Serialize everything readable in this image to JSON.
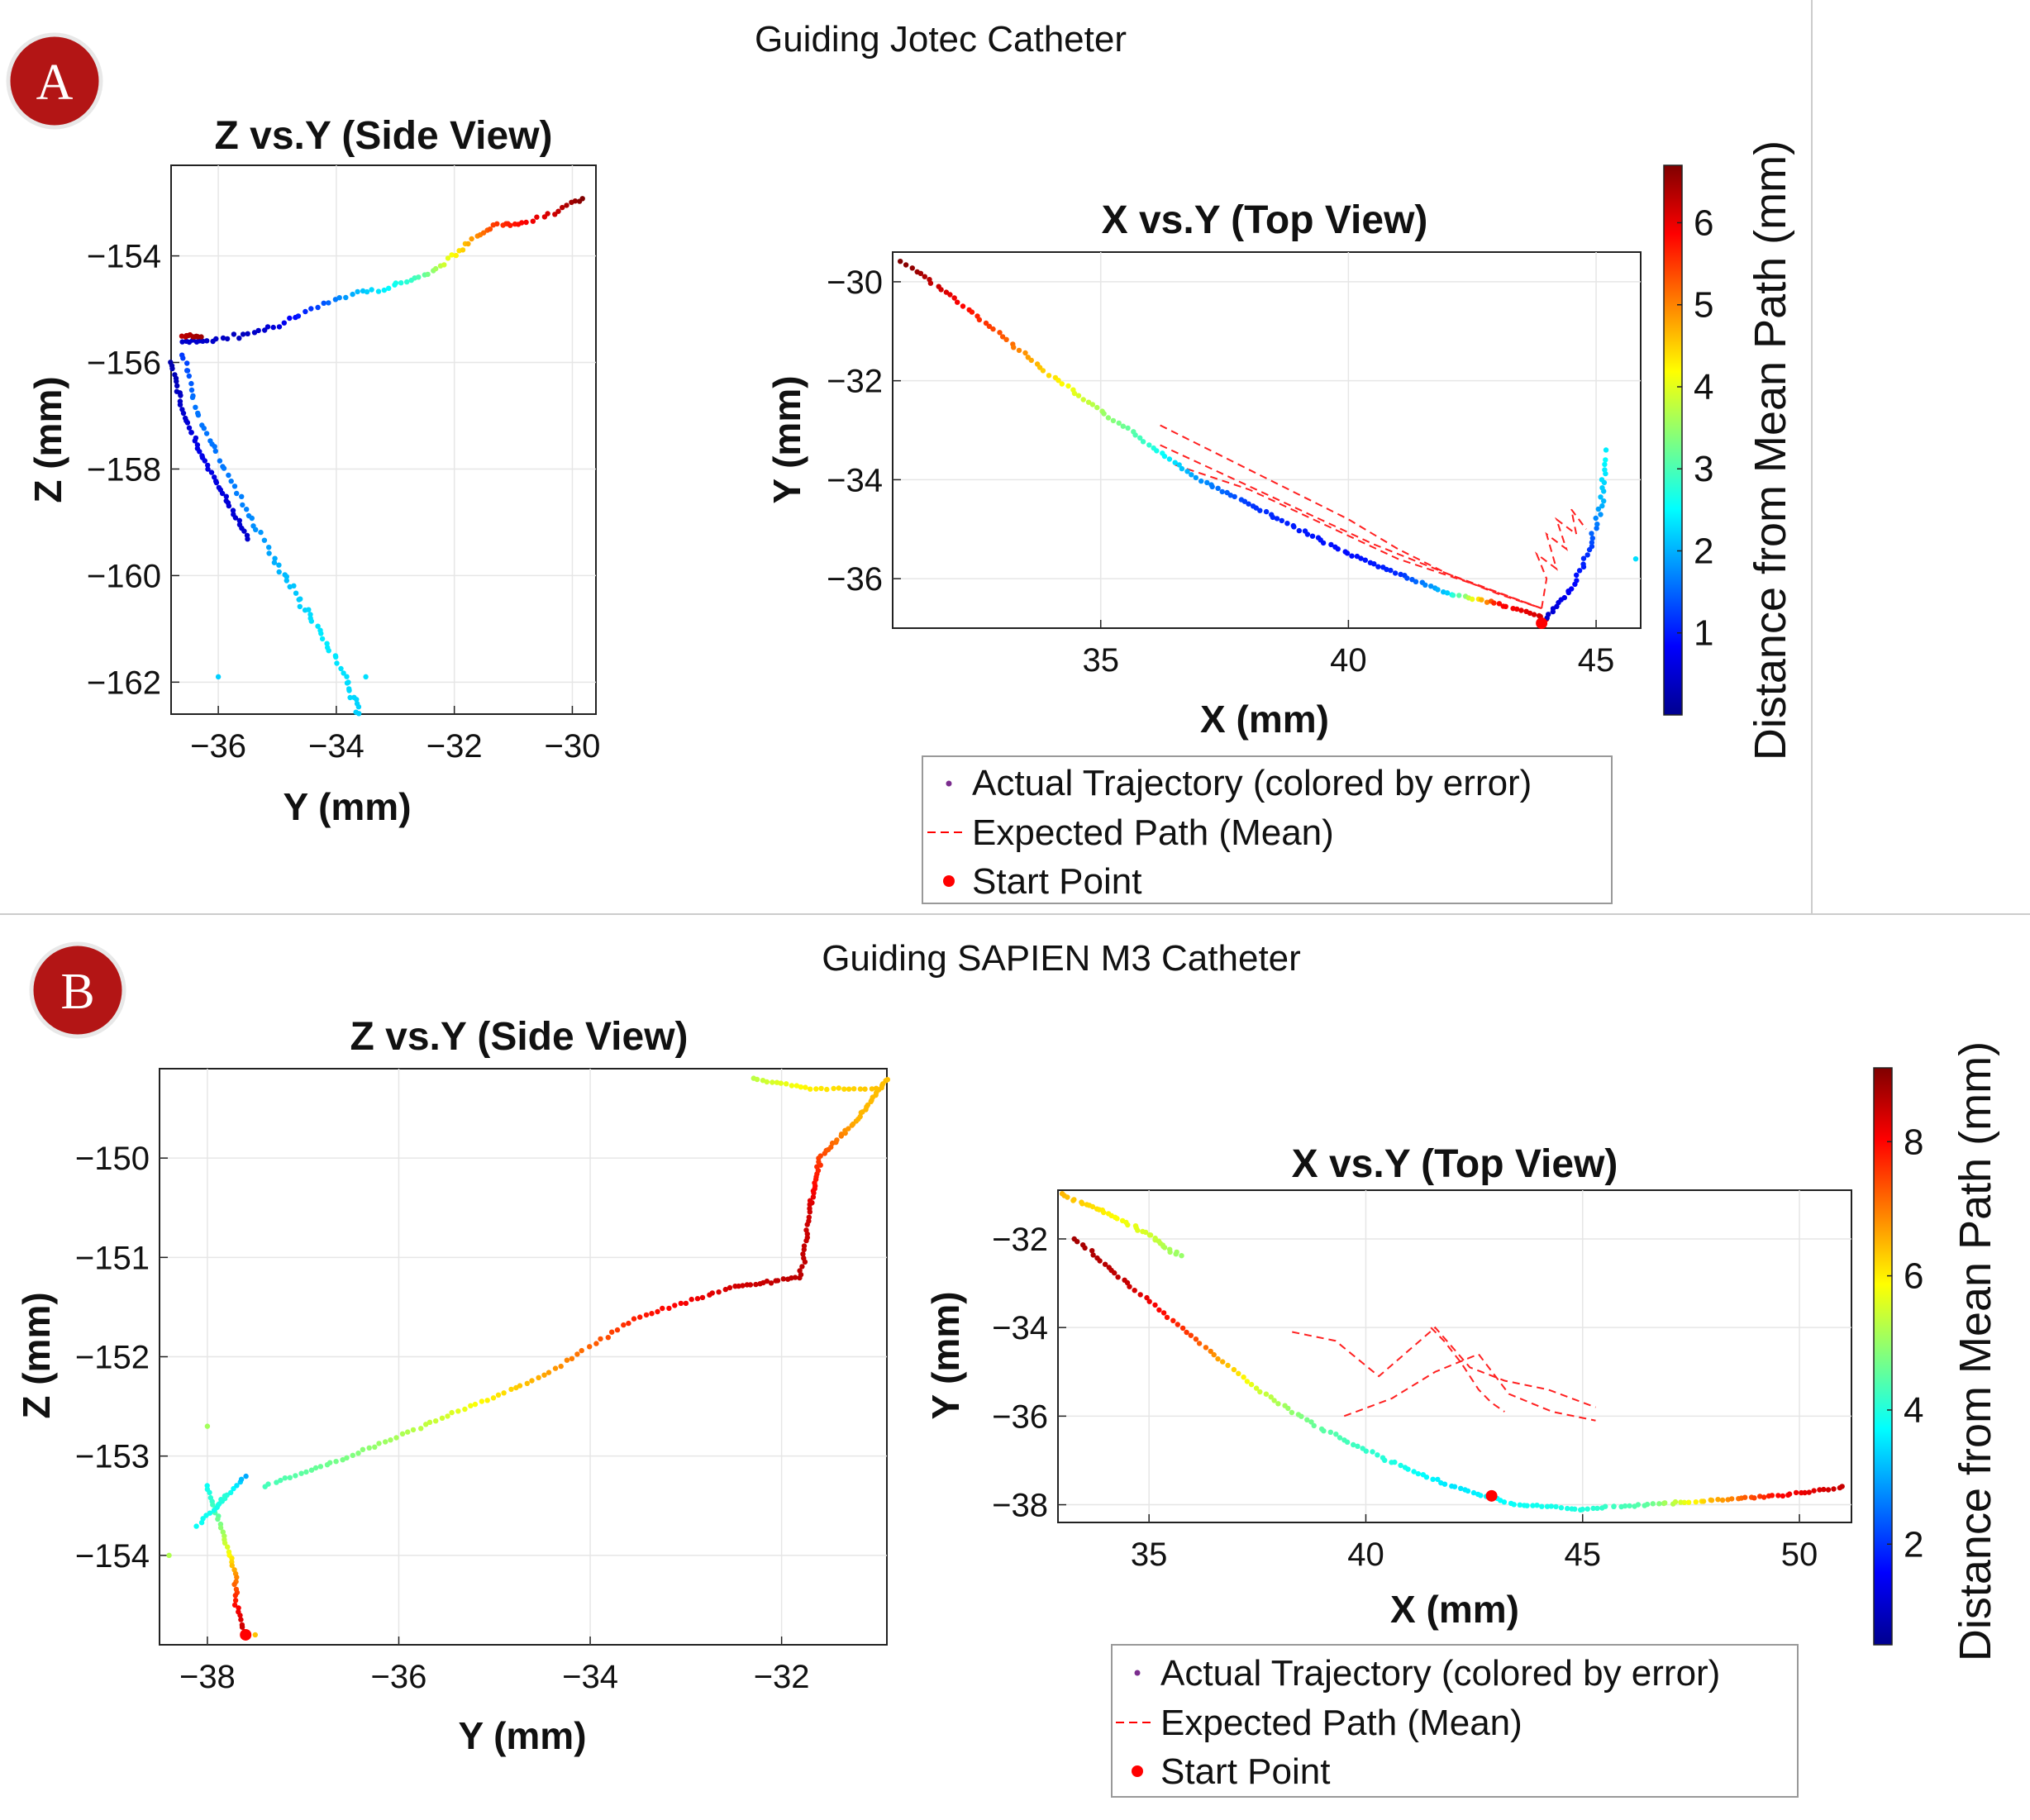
{
  "panels": [
    {
      "badge": "A",
      "figure_title": "Guiding Jotec Catheter",
      "colorbar": {
        "label": "Distance from Mean Path (mm)",
        "ticks": [
          "1",
          "2",
          "3",
          "4",
          "5",
          "6"
        ],
        "min": 0,
        "max": 6.7
      },
      "legend": {
        "actual": "Actual Trajectory (colored by error)",
        "expected": "Expected Path (Mean)",
        "start": "Start Point"
      }
    },
    {
      "badge": "B",
      "figure_title": "Guiding SAPIEN M3 Catheter",
      "colorbar": {
        "label": "Distance from Mean Path (mm)",
        "ticks": [
          "2",
          "4",
          "6",
          "8"
        ],
        "min": 0.5,
        "max": 9.1
      },
      "legend": {
        "actual": "Actual Trajectory (colored by error)",
        "expected": "Expected Path (Mean)",
        "start": "Start Point"
      }
    }
  ],
  "chart_data": [
    {
      "id": "A-side",
      "type": "scatter",
      "title": "Z vs.Y (Side View)",
      "xlabel": "Y (mm)",
      "ylabel": "Z (mm)",
      "xlim": [
        -36.8,
        -29.6
      ],
      "ylim": [
        -162.6,
        -152.3
      ],
      "xticks": [
        -36,
        -34,
        -32,
        -30
      ],
      "yticks": [
        -154,
        -156,
        -158,
        -160,
        -162
      ],
      "grid": true,
      "legend": "none",
      "tracks": [
        {
          "x": [
            -36.6,
            -36.2,
            -35.6,
            -35.0,
            -34.4,
            -33.7,
            -33.1,
            -32.6,
            -32.1,
            -31.7,
            -31.3,
            -30.9,
            -30.3,
            -29.8
          ],
          "y": [
            -155.6,
            -155.6,
            -155.5,
            -155.3,
            -155.0,
            -154.7,
            -154.6,
            -154.4,
            -154.1,
            -153.7,
            -153.4,
            -153.4,
            -153.2,
            -152.9
          ],
          "e": [
            0.5,
            0.5,
            0.4,
            0.6,
            1.2,
            2.0,
            2.5,
            3.0,
            4.0,
            4.8,
            5.5,
            5.8,
            6.2,
            6.7
          ],
          "n": 90,
          "spread": 0.06
        },
        {
          "x": [
            -36.6,
            -36.4,
            -36.0,
            -35.5,
            -35.0,
            -34.6,
            -34.2,
            -33.8,
            -33.6
          ],
          "y": [
            -155.8,
            -156.8,
            -157.8,
            -158.8,
            -159.8,
            -160.5,
            -161.2,
            -162.0,
            -162.6
          ],
          "e": [
            1.2,
            1.6,
            1.6,
            1.7,
            2.0,
            2.2,
            2.4,
            2.3,
            2.2
          ],
          "n": 80,
          "spread": 0.08
        },
        {
          "x": [
            -36.8,
            -36.6,
            -36.3,
            -35.9,
            -35.5
          ],
          "y": [
            -156.0,
            -156.9,
            -157.7,
            -158.5,
            -159.3
          ],
          "e": [
            0.3,
            0.5,
            0.7,
            0.6,
            0.5
          ],
          "n": 50,
          "spread": 0.05
        },
        {
          "x": [
            -36.6,
            -36.3
          ],
          "y": [
            -155.5,
            -155.5
          ],
          "e": [
            6.3,
            6.5
          ],
          "n": 10,
          "spread": 0.04
        }
      ],
      "outliers": [
        {
          "x": -36.0,
          "y": -161.9,
          "e": 2.2
        },
        {
          "x": -33.5,
          "y": -161.9,
          "e": 2.3
        }
      ]
    },
    {
      "id": "A-top",
      "type": "scatter",
      "title": "X vs.Y (Top View)",
      "xlabel": "X (mm)",
      "ylabel": "Y (mm)",
      "xlim": [
        30.8,
        45.9
      ],
      "ylim": [
        -37.0,
        -29.4
      ],
      "xticks": [
        35,
        40,
        45
      ],
      "yticks": [
        -30,
        -32,
        -34,
        -36
      ],
      "grid": true,
      "legend": "below",
      "tracks": [
        {
          "x": [
            31.0,
            32.0,
            33.0,
            34.0,
            35.0,
            36.0,
            37.0,
            38.0,
            39.0,
            40.0,
            41.0,
            42.0,
            43.0,
            44.0
          ],
          "y": [
            -29.6,
            -30.3,
            -31.1,
            -31.9,
            -32.6,
            -33.3,
            -34.0,
            -34.5,
            -35.0,
            -35.5,
            -35.9,
            -36.3,
            -36.5,
            -36.8
          ],
          "e": [
            6.7,
            6.0,
            5.3,
            4.4,
            3.6,
            2.8,
            1.8,
            1.2,
            1.0,
            0.9,
            1.1,
            2.2,
            5.8,
            6.2
          ],
          "n": 150,
          "spread": 0.04
        },
        {
          "x": [
            44.0,
            44.5,
            44.9,
            45.1,
            45.2
          ],
          "y": [
            -36.8,
            -36.2,
            -35.4,
            -34.5,
            -33.6
          ],
          "e": [
            0.5,
            0.8,
            1.2,
            2.0,
            2.5
          ],
          "n": 40,
          "spread": 0.05
        }
      ],
      "outliers": [
        {
          "x": 45.8,
          "y": -35.6,
          "e": 2.3
        },
        {
          "x": 45.2,
          "y": -33.4,
          "e": 2.4
        }
      ],
      "expected_paths": [
        {
          "x": [
            36.2,
            37.0,
            38.0,
            39.0,
            40.0,
            41.0,
            42.0,
            43.0,
            43.9
          ],
          "y": [
            -32.9,
            -33.3,
            -33.8,
            -34.3,
            -34.8,
            -35.4,
            -35.9,
            -36.3,
            -36.6
          ]
        },
        {
          "x": [
            36.2,
            37.5,
            39.0,
            40.5,
            42.0,
            43.9
          ],
          "y": [
            -33.3,
            -33.9,
            -34.6,
            -35.3,
            -35.9,
            -36.6
          ]
        },
        {
          "x": [
            36.5,
            38.0,
            39.5,
            41.0,
            42.5,
            43.9
          ],
          "y": [
            -33.7,
            -34.2,
            -34.9,
            -35.6,
            -36.1,
            -36.6
          ]
        },
        {
          "x": [
            43.9,
            44.0,
            43.8,
            44.2,
            44.0,
            44.4,
            44.2,
            44.6,
            44.5,
            44.8
          ],
          "y": [
            -36.6,
            -36.0,
            -35.5,
            -35.8,
            -35.1,
            -35.4,
            -34.8,
            -35.1,
            -34.6,
            -35.0
          ]
        }
      ],
      "start": {
        "x": 43.9,
        "y": -36.9
      }
    },
    {
      "id": "B-side",
      "type": "scatter",
      "title": "Z vs.Y (Side View)",
      "xlabel": "Y (mm)",
      "ylabel": "Z (mm)",
      "xlim": [
        -38.5,
        -30.9
      ],
      "ylim": [
        -154.9,
        -149.1
      ],
      "xticks": [
        -38,
        -36,
        -34,
        -32
      ],
      "yticks": [
        -150,
        -151,
        -152,
        -153,
        -154
      ],
      "grid": true,
      "legend": "none",
      "tracks": [
        {
          "x": [
            -37.4,
            -36.5,
            -35.5,
            -34.5,
            -33.5,
            -32.5,
            -31.8,
            -31.7,
            -31.6,
            -31.2,
            -30.9
          ],
          "y": [
            -153.3,
            -153.0,
            -152.6,
            -152.2,
            -151.6,
            -151.3,
            -151.2,
            -150.5,
            -150.0,
            -149.6,
            -149.2
          ],
          "e": [
            4.3,
            4.8,
            5.5,
            6.6,
            7.8,
            8.4,
            8.6,
            8.4,
            7.5,
            6.5,
            6.4
          ],
          "n": 170,
          "spread": 0.03
        },
        {
          "x": [
            -32.3,
            -31.7,
            -31.0
          ],
          "y": [
            -149.2,
            -149.3,
            -149.3
          ],
          "e": [
            5.3,
            6.0,
            6.4
          ],
          "n": 25,
          "spread": 0.02
        },
        {
          "x": [
            -38.0,
            -37.9,
            -37.8,
            -37.7,
            -37.7,
            -37.6
          ],
          "y": [
            -153.3,
            -153.6,
            -153.9,
            -154.2,
            -154.5,
            -154.8
          ],
          "e": [
            3.8,
            4.5,
            5.5,
            6.8,
            8.0,
            8.6
          ],
          "n": 40,
          "spread": 0.03
        },
        {
          "x": [
            -38.1,
            -37.9,
            -37.8,
            -37.6
          ],
          "y": [
            -153.7,
            -153.5,
            -153.4,
            -153.2
          ],
          "e": [
            3.8,
            3.9,
            4.1,
            3.0
          ],
          "n": 20,
          "spread": 0.03
        }
      ],
      "outliers": [
        {
          "x": -37.5,
          "y": -154.8,
          "e": 6.4
        },
        {
          "x": -38.0,
          "y": -152.7,
          "e": 5.1
        },
        {
          "x": -38.4,
          "y": -154.0,
          "e": 5.2
        }
      ],
      "start": {
        "x": -37.6,
        "y": -154.8
      }
    },
    {
      "id": "B-top",
      "type": "scatter",
      "title": "X vs.Y (Top View)",
      "xlabel": "X (mm)",
      "ylabel": "Y (mm)",
      "xlim": [
        32.9,
        51.2
      ],
      "ylim": [
        -38.4,
        -30.9
      ],
      "xticks": [
        35,
        40,
        45,
        50
      ],
      "yticks": [
        -32,
        -34,
        -36,
        -38
      ],
      "grid": true,
      "legend": "below",
      "tracks": [
        {
          "x": [
            33.3,
            34.5,
            36.0,
            37.5,
            39.0,
            40.5,
            42.0,
            43.5,
            45.0,
            46.5,
            48.0,
            49.5,
            51.0
          ],
          "y": [
            -32.0,
            -33.0,
            -34.2,
            -35.4,
            -36.3,
            -37.0,
            -37.6,
            -38.0,
            -38.1,
            -38.0,
            -37.9,
            -37.8,
            -37.6
          ],
          "e": [
            8.8,
            8.5,
            7.5,
            5.5,
            4.5,
            4.0,
            3.5,
            3.8,
            4.0,
            4.5,
            6.5,
            8.0,
            8.5
          ],
          "n": 170,
          "spread": 0.04
        },
        {
          "x": [
            33.0,
            34.0,
            35.0,
            35.7
          ],
          "y": [
            -31.0,
            -31.4,
            -31.9,
            -32.4
          ],
          "e": [
            6.5,
            6.0,
            5.5,
            5.0
          ],
          "n": 40,
          "spread": 0.05
        }
      ],
      "outliers": [],
      "expected_paths": [
        {
          "x": [
            38.3,
            39.3,
            40.3,
            41.6,
            42.4,
            43.2,
            44.2,
            45.3
          ],
          "y": [
            -34.1,
            -34.3,
            -35.1,
            -34.0,
            -34.9,
            -35.2,
            -35.4,
            -35.8
          ]
        },
        {
          "x": [
            39.5,
            40.6,
            41.6,
            42.6,
            43.3,
            44.3,
            45.3
          ],
          "y": [
            -36.0,
            -35.6,
            -35.0,
            -34.6,
            -35.5,
            -35.9,
            -36.1
          ]
        },
        {
          "x": [
            41.5,
            41.8,
            42.2,
            42.6,
            42.9,
            43.2
          ],
          "y": [
            -34.0,
            -34.3,
            -34.8,
            -35.4,
            -35.7,
            -35.9
          ]
        }
      ],
      "start": {
        "x": 42.9,
        "y": -37.8
      }
    }
  ]
}
